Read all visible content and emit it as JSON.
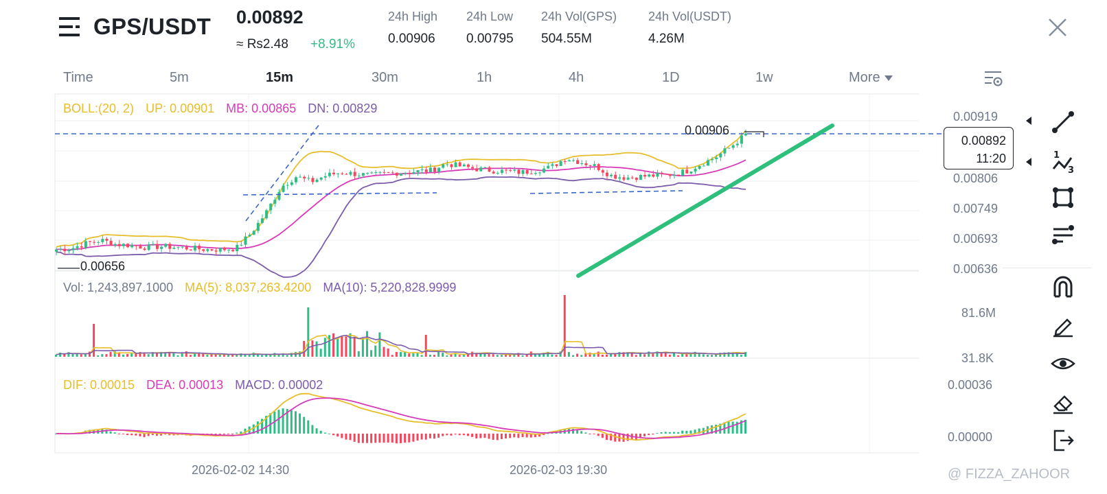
{
  "header": {
    "pair": "GPS/USDT",
    "last_price": "0.00892",
    "fiat_price": "≈ Rs2.48",
    "change_pct": "+8.91%",
    "stats": [
      {
        "label": "24h High",
        "value": "0.00906"
      },
      {
        "label": "24h Low",
        "value": "0.00795"
      },
      {
        "label": "24h Vol(GPS)",
        "value": "504.55M"
      },
      {
        "label": "24h Vol(USDT)",
        "value": "4.26M"
      }
    ],
    "menu_icon": "menu-icon",
    "close_icon": "close-icon"
  },
  "tabs": [
    "Time",
    "5m",
    "15m",
    "30m",
    "1h",
    "4h",
    "1D",
    "1w",
    "More"
  ],
  "active_tab": "15m",
  "boll_legend": {
    "name": "BOLL:(20, 2)",
    "up": "UP: 0.00901",
    "mb": "MB: 0.00865",
    "dn": "DN: 0.00829"
  },
  "vol_legend": {
    "vol": "Vol: 1,243,897.1000",
    "ma5": "MA(5): 8,037,263.4200",
    "ma10": "MA(10): 5,220,828.9999"
  },
  "macd_legend": {
    "dif": "DIF: 0.00015",
    "dea": "DEA: 0.00013",
    "macd": "MACD: 0.00002"
  },
  "price_axis": [
    "0.00919",
    "0.00806",
    "0.00749",
    "0.00693",
    "0.00636"
  ],
  "price_tag": {
    "price": "0.00892",
    "countdown": "11:20"
  },
  "high_marker": "0.00906",
  "low_marker": "0.00656",
  "volume_axis": [
    "81.6M",
    "31.8K"
  ],
  "macd_axis": [
    "0.00036",
    "0.00000"
  ],
  "time_axis": [
    "2026-02-02 14:30",
    "2026-02-03 19:30"
  ],
  "watermark": "@ FIZZA_ZAHOOR",
  "toolbar_icons": [
    "trend-line-icon",
    "fib-icon",
    "rectangle-icon",
    "parallel-channel-icon",
    "magnet-icon",
    "pencil-icon",
    "eye-icon",
    "eraser-icon",
    "exit-icon"
  ],
  "colors": {
    "up": "#2ebd85",
    "down": "#f6465d",
    "boll_up": "#e7bd2a",
    "boll_mb": "#d63ab8",
    "boll_dn": "#7b5bab",
    "drawing": "#3b64c8",
    "trendline": "#2fbf7d"
  },
  "chart_data": {
    "type": "candlestick",
    "price_range": [
      0.0063,
      0.0094
    ],
    "close_path": [
      0.00668,
      0.0067,
      0.0068,
      0.00686,
      0.00678,
      0.00676,
      0.00672,
      0.00674,
      0.00672,
      0.0067,
      0.00668,
      0.00668,
      0.0067,
      0.007,
      0.0074,
      0.0079,
      0.0081,
      0.008,
      0.00812,
      0.00818,
      0.00815,
      0.00812,
      0.00816,
      0.00818,
      0.0082,
      0.00822,
      0.00835,
      0.0083,
      0.00825,
      0.00822,
      0.0082,
      0.00818,
      0.00822,
      0.00828,
      0.00846,
      0.00838,
      0.0083,
      0.00812,
      0.00808,
      0.0081,
      0.00812,
      0.00814,
      0.0082,
      0.00834,
      0.00848,
      0.00868,
      0.00892
    ]
  }
}
